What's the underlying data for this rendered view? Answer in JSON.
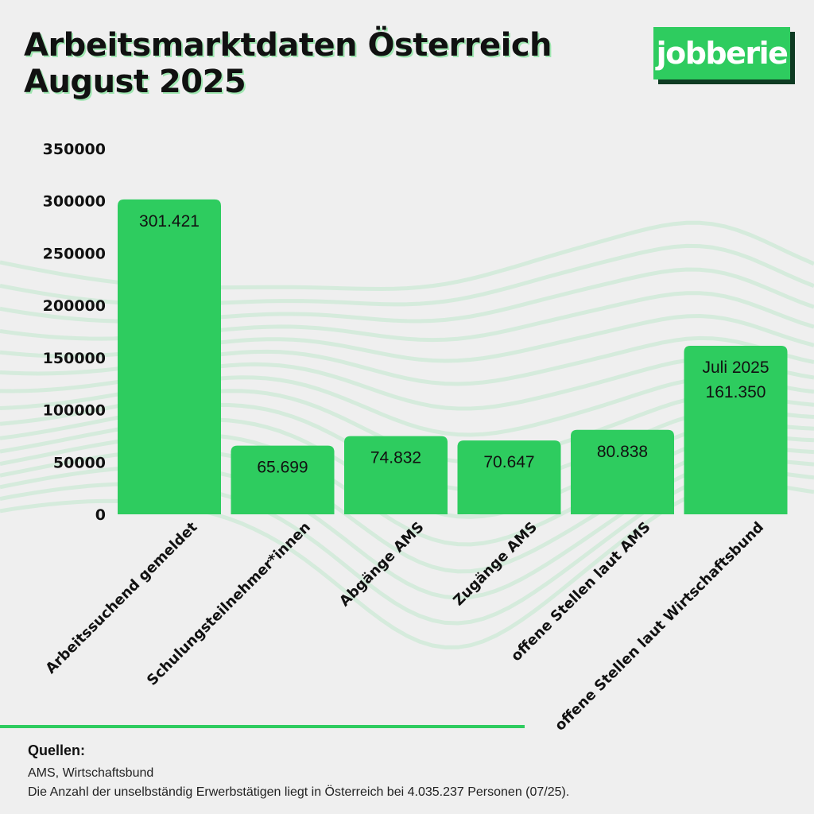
{
  "title": [
    "Arbeitsmarktdaten Österreich",
    "August 2025"
  ],
  "logo_text": "jobberie",
  "colors": {
    "bar": "#2ecc5f",
    "wave": "#bfe8cc",
    "background": "#efefef"
  },
  "chart_data": {
    "type": "bar",
    "categories": [
      "Arbeitssuchend gemeldet",
      "Schulungsteilnehmer*innen",
      "Abgänge AMS",
      "Zugänge AMS",
      "offene Stellen laut AMS",
      "offene Stellen laut Wirtschaftsbund"
    ],
    "values": [
      301421,
      65699,
      74832,
      70647,
      80838,
      161350
    ],
    "data_labels": [
      [
        "301.421"
      ],
      [
        "65.699"
      ],
      [
        "74.832"
      ],
      [
        "70.647"
      ],
      [
        "80.838"
      ],
      [
        "Juli 2025",
        "161.350"
      ]
    ],
    "yticks": [
      "0",
      "50000",
      "100000",
      "150000",
      "200000",
      "250000",
      "300000",
      "350000"
    ],
    "ylim": [
      0,
      350000
    ],
    "grid": false
  },
  "sources": {
    "heading": "Quellen:",
    "lines": [
      "AMS, Wirtschaftsbund",
      "Die Anzahl der unselbständig Erwerbstätigen liegt in Österreich  bei 4.035.237 Personen (07/25)."
    ]
  }
}
